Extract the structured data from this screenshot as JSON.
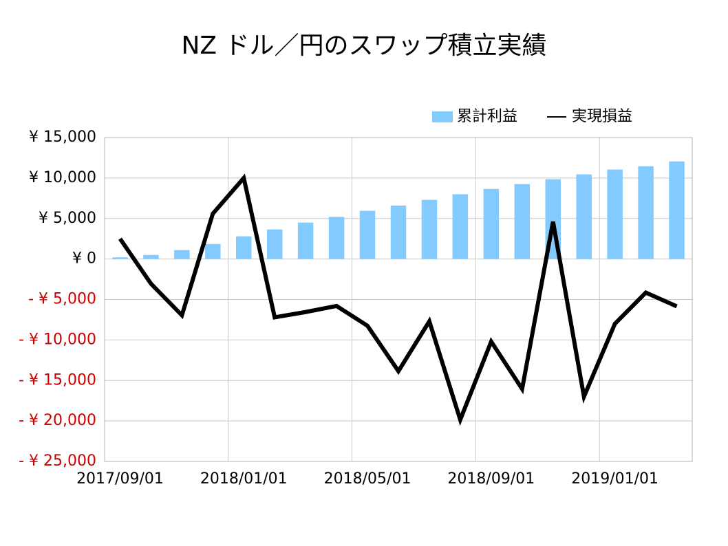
{
  "chart_data": {
    "type": "combo",
    "title": "NZ ドル／円のスワップ積立実績",
    "categories": [
      "2017/09/01",
      null,
      null,
      null,
      "2018/01/01",
      null,
      null,
      null,
      "2018/05/01",
      null,
      null,
      null,
      "2018/09/01",
      null,
      null,
      null,
      "2019/01/01",
      null,
      null
    ],
    "series": [
      {
        "name": "累計利益",
        "type": "bar",
        "color": "#83caff",
        "values": [
          200,
          500,
          1100,
          1850,
          2800,
          3650,
          4500,
          5200,
          5950,
          6600,
          7300,
          8000,
          8650,
          9250,
          9850,
          10450,
          11050,
          11450,
          12050
        ]
      },
      {
        "name": "実現損益",
        "type": "line",
        "color": "#000000",
        "values": [
          2500,
          -3050,
          -6950,
          5600,
          10000,
          -7200,
          -6550,
          -5800,
          -8250,
          -13850,
          -7700,
          -19850,
          -10200,
          -16050,
          4600,
          -17000,
          -8000,
          -4150,
          -5850
        ]
      }
    ],
    "ylim": [
      -25000,
      15000
    ],
    "yticks": [
      {
        "value": 15000,
        "label": "¥ 15,000"
      },
      {
        "value": 10000,
        "label": "¥ 10,000"
      },
      {
        "value": 5000,
        "label": "¥ 5,000"
      },
      {
        "value": 0,
        "label": "¥ 0"
      },
      {
        "value": -5000,
        "label": "- ¥ 5,000"
      },
      {
        "value": -10000,
        "label": "- ¥ 10,000"
      },
      {
        "value": -15000,
        "label": "- ¥ 15,000"
      },
      {
        "value": -20000,
        "label": "- ¥ 20,000"
      },
      {
        "value": -25000,
        "label": "- ¥ 25,000"
      }
    ],
    "negative_tick_color": "#cc0000",
    "grid": true,
    "legend": "top-right"
  }
}
